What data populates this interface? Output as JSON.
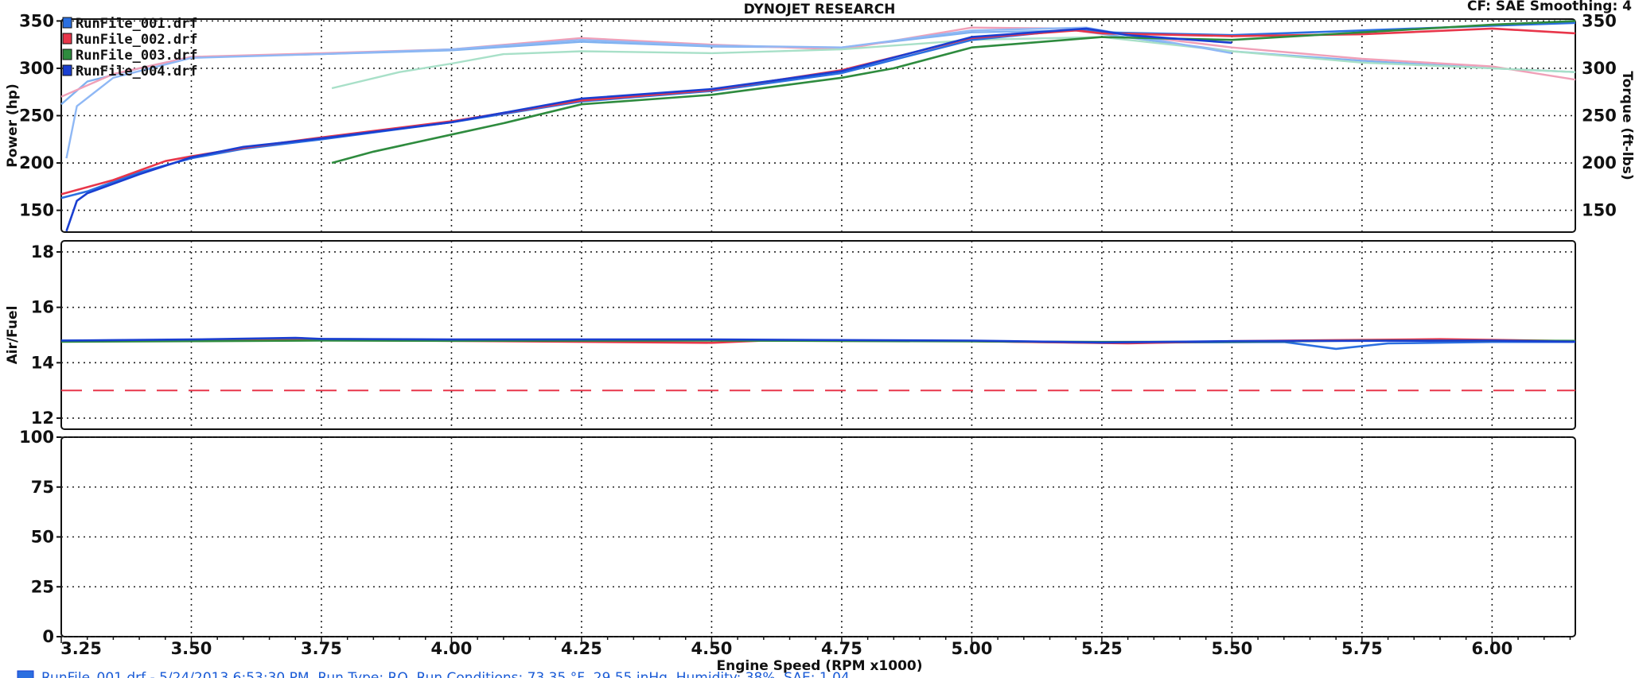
{
  "chart_data": {
    "type": "line",
    "title": "DYNOJET RESEARCH",
    "header_right": "CF: SAE  Smoothing: 4",
    "xlabel": "Engine Speed (RPM x1000)",
    "xlim": [
      3.25,
      6.16
    ],
    "x_ticks": [
      "3.25",
      "3.50",
      "3.75",
      "4.00",
      "4.25",
      "4.50",
      "4.75",
      "5.00",
      "5.25",
      "5.50",
      "5.75",
      "6.00"
    ],
    "grid": true,
    "legend": {
      "placement": "top-left",
      "entries": [
        {
          "name": "RunFile_001.drf",
          "color": "#2b6fe0"
        },
        {
          "name": "RunFile_002.drf",
          "color": "#e8364a"
        },
        {
          "name": "RunFile_003.drf",
          "color": "#2e8b3e"
        },
        {
          "name": "RunFile_004.drf",
          "color": "#1a3fd1"
        }
      ]
    },
    "footer": "RunFile_001.drf - 5/24/2013 6:53:30 PM, Run Type: RO, Run Conditions: 73.35 °F, 29.55 inHg, Humidity: 38%, SAE: 1.04",
    "panels": [
      {
        "id": "power-torque",
        "ylabel": "Power (hp)",
        "ylabel_right": "Torque (ft-lbs)",
        "ylim": [
          127,
          352
        ],
        "y_ticks": [
          150,
          200,
          250,
          300,
          350
        ],
        "y_ticks_right": [
          150,
          200,
          250,
          300,
          350
        ],
        "series": [
          {
            "name": "RunFile_001.drf",
            "kind": "power",
            "color": "#2b6fe0",
            "points": [
              [
                3.25,
                163
              ],
              [
                3.3,
                170
              ],
              [
                3.4,
                190
              ],
              [
                3.5,
                205
              ],
              [
                3.6,
                215
              ],
              [
                3.75,
                225
              ],
              [
                4.0,
                243
              ],
              [
                4.25,
                265
              ],
              [
                4.5,
                276
              ],
              [
                4.75,
                295
              ],
              [
                5.0,
                330
              ],
              [
                5.2,
                341
              ],
              [
                5.25,
                338
              ],
              [
                5.5,
                335
              ],
              [
                5.75,
                340
              ],
              [
                6.0,
                345
              ],
              [
                6.16,
                348
              ]
            ]
          },
          {
            "name": "RunFile_002.drf",
            "kind": "power",
            "color": "#e8364a",
            "points": [
              [
                3.25,
                167
              ],
              [
                3.35,
                182
              ],
              [
                3.45,
                202
              ],
              [
                3.5,
                207
              ],
              [
                3.6,
                216
              ],
              [
                3.75,
                227
              ],
              [
                4.0,
                244
              ],
              [
                4.25,
                266
              ],
              [
                4.5,
                277
              ],
              [
                4.75,
                298
              ],
              [
                5.0,
                332
              ],
              [
                5.2,
                340
              ],
              [
                5.25,
                337
              ],
              [
                5.5,
                334
              ],
              [
                5.75,
                336
              ],
              [
                6.0,
                342
              ],
              [
                6.16,
                337
              ]
            ]
          },
          {
            "name": "RunFile_003.drf",
            "kind": "power",
            "color": "#2e8b3e",
            "points": [
              [
                3.77,
                200
              ],
              [
                3.85,
                212
              ],
              [
                4.0,
                230
              ],
              [
                4.1,
                242
              ],
              [
                4.25,
                262
              ],
              [
                4.5,
                272
              ],
              [
                4.75,
                290
              ],
              [
                4.85,
                300
              ],
              [
                5.0,
                322
              ],
              [
                5.25,
                333
              ],
              [
                5.5,
                330
              ],
              [
                5.75,
                338
              ],
              [
                6.0,
                346
              ],
              [
                6.16,
                350
              ]
            ]
          },
          {
            "name": "RunFile_004.drf",
            "kind": "power",
            "color": "#1a3fd1",
            "points": [
              [
                3.26,
                128
              ],
              [
                3.28,
                160
              ],
              [
                3.3,
                168
              ],
              [
                3.4,
                188
              ],
              [
                3.5,
                206
              ],
              [
                3.6,
                217
              ],
              [
                3.75,
                226
              ],
              [
                4.0,
                243
              ],
              [
                4.25,
                268
              ],
              [
                4.5,
                278
              ],
              [
                4.75,
                297
              ],
              [
                5.0,
                333
              ],
              [
                5.22,
                342
              ],
              [
                5.3,
                335
              ],
              [
                5.5,
                327
              ]
            ]
          },
          {
            "name": "RunFile_001.drf",
            "kind": "torque",
            "color": "#7fb2f0",
            "points": [
              [
                3.25,
                262
              ],
              [
                3.3,
                286
              ],
              [
                3.4,
                300
              ],
              [
                3.5,
                312
              ],
              [
                3.75,
                315
              ],
              [
                4.0,
                319
              ],
              [
                4.25,
                328
              ],
              [
                4.5,
                323
              ],
              [
                4.75,
                322
              ],
              [
                5.0,
                338
              ],
              [
                5.2,
                340
              ],
              [
                5.5,
                318
              ],
              [
                5.75,
                308
              ],
              [
                6.0,
                300
              ],
              [
                6.16,
                296
              ]
            ]
          },
          {
            "name": "RunFile_002.drf",
            "kind": "torque",
            "color": "#f0a0b8",
            "points": [
              [
                3.25,
                270
              ],
              [
                3.35,
                294
              ],
              [
                3.5,
                312
              ],
              [
                3.75,
                316
              ],
              [
                4.0,
                320
              ],
              [
                4.25,
                332
              ],
              [
                4.5,
                325
              ],
              [
                4.75,
                320
              ],
              [
                5.0,
                343
              ],
              [
                5.2,
                342
              ],
              [
                5.5,
                322
              ],
              [
                5.75,
                310
              ],
              [
                6.0,
                302
              ],
              [
                6.16,
                288
              ]
            ]
          },
          {
            "name": "RunFile_003.drf",
            "kind": "torque",
            "color": "#a8e0c8",
            "points": [
              [
                3.77,
                279
              ],
              [
                3.9,
                296
              ],
              [
                4.0,
                305
              ],
              [
                4.1,
                315
              ],
              [
                4.25,
                318
              ],
              [
                4.5,
                316
              ],
              [
                4.75,
                320
              ],
              [
                5.0,
                330
              ],
              [
                5.25,
                333
              ],
              [
                5.5,
                318
              ],
              [
                5.75,
                306
              ],
              [
                6.0,
                300
              ],
              [
                6.16,
                296
              ]
            ]
          },
          {
            "name": "RunFile_004.drf",
            "kind": "torque",
            "color": "#8fb8f5",
            "points": [
              [
                3.26,
                205
              ],
              [
                3.28,
                260
              ],
              [
                3.35,
                290
              ],
              [
                3.5,
                311
              ],
              [
                3.75,
                315
              ],
              [
                4.0,
                320
              ],
              [
                4.25,
                330
              ],
              [
                4.5,
                324
              ],
              [
                4.75,
                322
              ],
              [
                5.0,
                340
              ],
              [
                5.22,
                343
              ],
              [
                5.5,
                316
              ]
            ]
          }
        ]
      },
      {
        "id": "air-fuel",
        "ylabel": "Air/Fuel",
        "ylim": [
          11.6,
          18.4
        ],
        "y_ticks": [
          12,
          14,
          16,
          18
        ],
        "target_line": {
          "value": 13.0,
          "color": "#e8364a",
          "style": "dashed"
        },
        "series": [
          {
            "name": "RunFile_001.drf",
            "color": "#2b6fe0",
            "points": [
              [
                3.25,
                14.8
              ],
              [
                3.5,
                14.82
              ],
              [
                3.75,
                14.86
              ],
              [
                4.0,
                14.83
              ],
              [
                4.5,
                14.82
              ],
              [
                5.0,
                14.78
              ],
              [
                5.25,
                14.72
              ],
              [
                5.6,
                14.75
              ],
              [
                5.7,
                14.5
              ],
              [
                5.8,
                14.7
              ],
              [
                6.0,
                14.75
              ],
              [
                6.16,
                14.75
              ]
            ]
          },
          {
            "name": "RunFile_002.drf",
            "color": "#e8364a",
            "points": [
              [
                3.25,
                14.78
              ],
              [
                3.5,
                14.8
              ],
              [
                3.75,
                14.82
              ],
              [
                4.0,
                14.79
              ],
              [
                4.5,
                14.72
              ],
              [
                4.6,
                14.8
              ],
              [
                5.0,
                14.78
              ],
              [
                5.3,
                14.7
              ],
              [
                5.5,
                14.78
              ],
              [
                5.9,
                14.85
              ],
              [
                6.16,
                14.78
              ]
            ]
          },
          {
            "name": "RunFile_003.drf",
            "color": "#2e8b3e",
            "points": [
              [
                3.25,
                14.76
              ],
              [
                3.5,
                14.78
              ],
              [
                3.75,
                14.8
              ],
              [
                4.0,
                14.79
              ],
              [
                4.5,
                14.8
              ],
              [
                5.0,
                14.77
              ],
              [
                5.25,
                14.75
              ],
              [
                5.5,
                14.76
              ],
              [
                5.75,
                14.8
              ],
              [
                6.16,
                14.79
              ]
            ]
          },
          {
            "name": "RunFile_004.drf",
            "color": "#1a3fd1",
            "points": [
              [
                3.25,
                14.8
              ],
              [
                3.5,
                14.84
              ],
              [
                3.7,
                14.9
              ],
              [
                3.75,
                14.86
              ],
              [
                4.0,
                14.84
              ],
              [
                4.5,
                14.84
              ],
              [
                5.0,
                14.8
              ],
              [
                5.25,
                14.73
              ],
              [
                5.5,
                14.78
              ],
              [
                6.0,
                14.8
              ],
              [
                6.16,
                14.76
              ]
            ]
          }
        ]
      },
      {
        "id": "blank",
        "ylim": [
          0,
          100
        ],
        "y_ticks": [
          0,
          25,
          50,
          75,
          100
        ],
        "series": []
      }
    ]
  }
}
